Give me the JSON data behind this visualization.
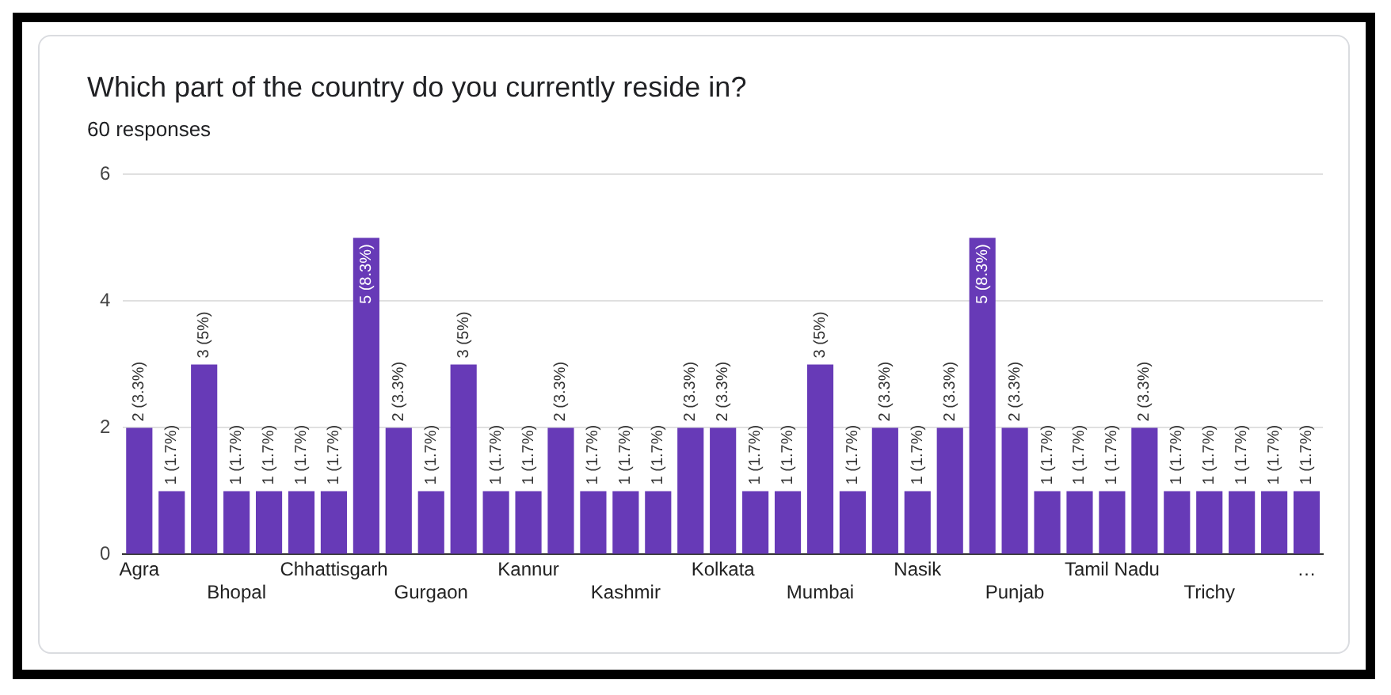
{
  "chart_data": {
    "type": "bar",
    "title": "Which part of the country do you currently reside in?",
    "subtitle": "60 responses",
    "categories": [
      "Agra",
      null,
      null,
      "Bhopal",
      null,
      null,
      "Chhattisgarh",
      null,
      null,
      "Gurgaon",
      null,
      null,
      "Kannur",
      null,
      null,
      "Kashmir",
      null,
      null,
      "Kolkata",
      null,
      null,
      "Mumbai",
      null,
      null,
      "Nasik",
      null,
      null,
      "Punjab",
      null,
      null,
      "Tamil Nadu",
      null,
      null,
      "Trichy",
      null,
      null,
      "…"
    ],
    "values": [
      2,
      1,
      3,
      1,
      1,
      1,
      1,
      5,
      2,
      1,
      3,
      1,
      1,
      2,
      1,
      1,
      1,
      2,
      2,
      1,
      1,
      3,
      1,
      2,
      1,
      2,
      5,
      2,
      1,
      1,
      1,
      2,
      1,
      1,
      1,
      1,
      1
    ],
    "value_labels": [
      "2 (3.3%)",
      "1 (1.7%)",
      "3 (5%)",
      "1 (1.7%)",
      "1 (1.7%)",
      "1 (1.7%)",
      "1 (1.7%)",
      "5 (8.3%)",
      "2 (3.3%)",
      "1 (1.7%)",
      "3 (5%)",
      "1 (1.7%)",
      "1 (1.7%)",
      "2 (3.3%)",
      "1 (1.7%)",
      "1 (1.7%)",
      "1 (1.7%)",
      "2 (3.3%)",
      "2 (3.3%)",
      "1 (1.7%)",
      "1 (1.7%)",
      "3 (5%)",
      "1 (1.7%)",
      "2 (3.3%)",
      "1 (1.7%)",
      "2 (3.3%)",
      "5 (8.3%)",
      "2 (3.3%)",
      "1 (1.7%)",
      "1 (1.7%)",
      "1 (1.7%)",
      "2 (3.3%)",
      "1 (1.7%)",
      "1 (1.7%)",
      "1 (1.7%)",
      "1 (1.7%)",
      "1 (1.7%)"
    ],
    "color": "#673ab7",
    "ylim": [
      0,
      6
    ],
    "yticks": [
      0,
      2,
      4,
      6
    ],
    "grid": "y",
    "legend": false
  }
}
